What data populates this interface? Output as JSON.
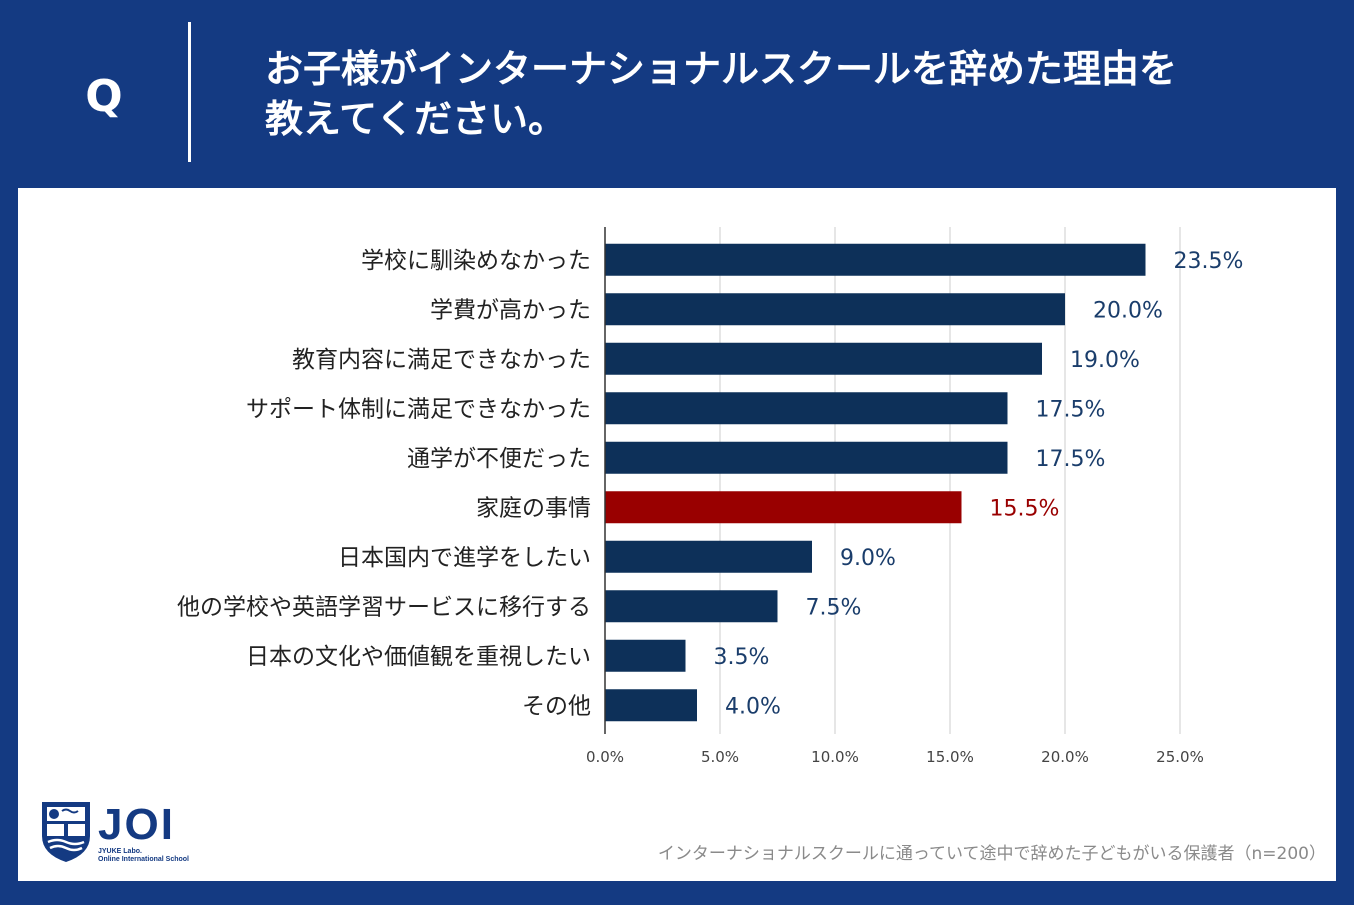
{
  "header": {
    "q_label": "Q",
    "question_line1": "お子様がインターナショナルスクールを辞めた理由を",
    "question_line2": "教えてください。"
  },
  "chart_data": {
    "type": "bar",
    "orientation": "horizontal",
    "categories": [
      "学校に馴染めなかった",
      "学費が高かった",
      "教育内容に満足できなかった",
      "サポート体制に満足できなかった",
      "通学が不便だった",
      "家庭の事情",
      "日本国内で進学をしたい",
      "他の学校や英語学習サービスに移行する",
      "日本の文化や価値観を重視したい",
      "その他"
    ],
    "values": [
      23.5,
      20.0,
      19.0,
      17.5,
      17.5,
      15.5,
      9.0,
      7.5,
      3.5,
      4.0
    ],
    "value_labels": [
      "23.5%",
      "20.0%",
      "19.0%",
      "17.5%",
      "17.5%",
      "15.5%",
      "9.0%",
      "7.5%",
      "3.5%",
      "4.0%"
    ],
    "highlight_index": 5,
    "xlim": [
      0,
      25
    ],
    "xticks": [
      0,
      5,
      10,
      15,
      20,
      25
    ],
    "xtick_labels": [
      "0.0%",
      "5.0%",
      "10.0%",
      "15.0%",
      "20.0%",
      "25.0%"
    ],
    "grid": true,
    "colors": {
      "bar": "#0d3059",
      "highlight": "#990000",
      "grid": "#cccccc"
    }
  },
  "logo": {
    "name": "JOI",
    "subtitle_line1": "JYUKE Labo.",
    "subtitle_line2": "Online International School"
  },
  "footnote": "インターナショナルスクールに通っていて途中で辞めた子どもがいる保護者（n=200）"
}
